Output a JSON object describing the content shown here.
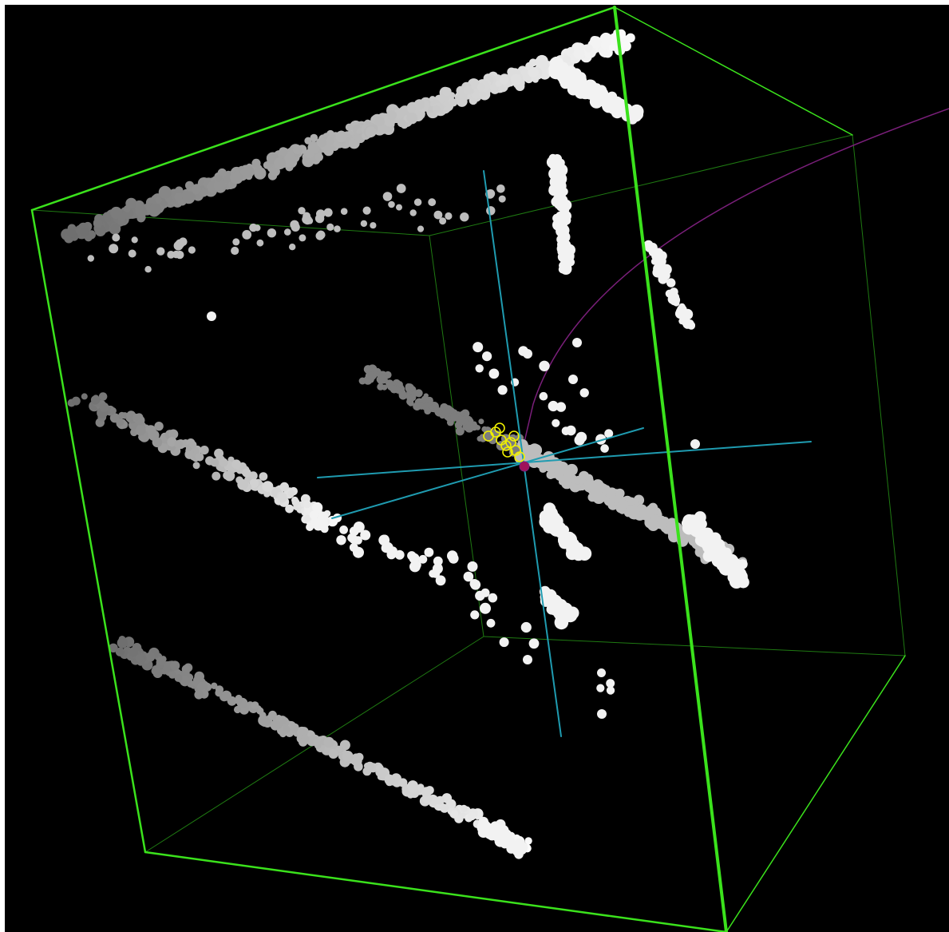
{
  "viewer": {
    "background": "#000000",
    "colors": {
      "box_edge_bright": "#3be21c",
      "box_edge_dim": "#1f7a12",
      "axis": "#1f9bb0",
      "trajectory": "#7a1f7a",
      "highlight": "#f0f000",
      "origin_marker": "#a0125a",
      "point_light": "#f2f2f2",
      "point_mid": "#bdbdbd",
      "point_dark": "#7d7d7d"
    },
    "icons": {
      "box": "bounding-box-icon",
      "axis": "axis-icon"
    }
  }
}
